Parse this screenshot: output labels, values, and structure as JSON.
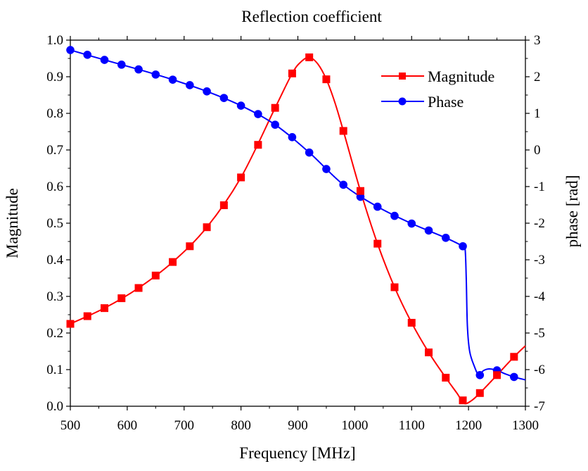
{
  "chart_data": {
    "type": "line",
    "title": "Reflection coefficient",
    "xlabel": "Frequency [MHz]",
    "ylabel": "Magnitude",
    "y2label": "phase [rad]",
    "xlim": [
      500,
      1300
    ],
    "ylim": [
      0.0,
      1.0
    ],
    "y2lim": [
      -7,
      3
    ],
    "x_ticks": [
      "500",
      "600",
      "700",
      "800",
      "900",
      "1000",
      "1100",
      "1200",
      "1300"
    ],
    "y_ticks": [
      "0.0",
      "0.1",
      "0.2",
      "0.3",
      "0.4",
      "0.5",
      "0.6",
      "0.7",
      "0.8",
      "0.9",
      "1.0"
    ],
    "y2_ticks": [
      "3",
      "2",
      "1",
      "0",
      "-1",
      "-2",
      "-3",
      "-4",
      "-5",
      "-6",
      "-7"
    ],
    "grid": false,
    "legend_position": "top-right",
    "series": [
      {
        "name": "Magnitude",
        "axis": "left",
        "color": "#ff0000",
        "marker": "square",
        "markers": [
          {
            "x": 500,
            "y": 0.225
          },
          {
            "x": 530,
            "y": 0.246
          },
          {
            "x": 560,
            "y": 0.268
          },
          {
            "x": 590,
            "y": 0.295
          },
          {
            "x": 620,
            "y": 0.323
          },
          {
            "x": 650,
            "y": 0.357
          },
          {
            "x": 680,
            "y": 0.394
          },
          {
            "x": 710,
            "y": 0.437
          },
          {
            "x": 740,
            "y": 0.489
          },
          {
            "x": 770,
            "y": 0.549
          },
          {
            "x": 800,
            "y": 0.625
          },
          {
            "x": 830,
            "y": 0.714
          },
          {
            "x": 860,
            "y": 0.815
          },
          {
            "x": 890,
            "y": 0.909
          },
          {
            "x": 920,
            "y": 0.953
          },
          {
            "x": 950,
            "y": 0.893
          },
          {
            "x": 980,
            "y": 0.752
          },
          {
            "x": 1010,
            "y": 0.588
          },
          {
            "x": 1040,
            "y": 0.444
          },
          {
            "x": 1070,
            "y": 0.325
          },
          {
            "x": 1100,
            "y": 0.228
          },
          {
            "x": 1130,
            "y": 0.147
          },
          {
            "x": 1160,
            "y": 0.078
          },
          {
            "x": 1190,
            "y": 0.016
          },
          {
            "x": 1220,
            "y": 0.036
          },
          {
            "x": 1250,
            "y": 0.085
          },
          {
            "x": 1280,
            "y": 0.135
          }
        ],
        "curve": [
          {
            "x": 500,
            "y": 0.225
          },
          {
            "x": 560,
            "y": 0.268
          },
          {
            "x": 620,
            "y": 0.323
          },
          {
            "x": 680,
            "y": 0.394
          },
          {
            "x": 740,
            "y": 0.489
          },
          {
            "x": 800,
            "y": 0.625
          },
          {
            "x": 860,
            "y": 0.815
          },
          {
            "x": 890,
            "y": 0.909
          },
          {
            "x": 905,
            "y": 0.94
          },
          {
            "x": 920,
            "y": 0.953
          },
          {
            "x": 935,
            "y": 0.935
          },
          {
            "x": 950,
            "y": 0.893
          },
          {
            "x": 965,
            "y": 0.83
          },
          {
            "x": 980,
            "y": 0.752
          },
          {
            "x": 1010,
            "y": 0.588
          },
          {
            "x": 1040,
            "y": 0.444
          },
          {
            "x": 1070,
            "y": 0.325
          },
          {
            "x": 1100,
            "y": 0.228
          },
          {
            "x": 1130,
            "y": 0.147
          },
          {
            "x": 1160,
            "y": 0.078
          },
          {
            "x": 1180,
            "y": 0.035
          },
          {
            "x": 1192,
            "y": 0.008
          },
          {
            "x": 1205,
            "y": 0.015
          },
          {
            "x": 1220,
            "y": 0.036
          },
          {
            "x": 1250,
            "y": 0.085
          },
          {
            "x": 1280,
            "y": 0.135
          },
          {
            "x": 1300,
            "y": 0.165
          }
        ]
      },
      {
        "name": "Phase",
        "axis": "right",
        "color": "#0000ff",
        "marker": "circle",
        "markers": [
          {
            "x": 500,
            "y": 2.73
          },
          {
            "x": 530,
            "y": 2.6
          },
          {
            "x": 560,
            "y": 2.46
          },
          {
            "x": 590,
            "y": 2.33
          },
          {
            "x": 620,
            "y": 2.2
          },
          {
            "x": 650,
            "y": 2.06
          },
          {
            "x": 680,
            "y": 1.92
          },
          {
            "x": 710,
            "y": 1.77
          },
          {
            "x": 740,
            "y": 1.6
          },
          {
            "x": 770,
            "y": 1.42
          },
          {
            "x": 800,
            "y": 1.21
          },
          {
            "x": 830,
            "y": 0.98
          },
          {
            "x": 860,
            "y": 0.69
          },
          {
            "x": 890,
            "y": 0.35
          },
          {
            "x": 920,
            "y": -0.07
          },
          {
            "x": 950,
            "y": -0.52
          },
          {
            "x": 980,
            "y": -0.95
          },
          {
            "x": 1010,
            "y": -1.28
          },
          {
            "x": 1040,
            "y": -1.55
          },
          {
            "x": 1070,
            "y": -1.8
          },
          {
            "x": 1100,
            "y": -2.01
          },
          {
            "x": 1130,
            "y": -2.2
          },
          {
            "x": 1160,
            "y": -2.4
          },
          {
            "x": 1190,
            "y": -2.63
          },
          {
            "x": 1220,
            "y": -6.15
          },
          {
            "x": 1250,
            "y": -6.02
          },
          {
            "x": 1280,
            "y": -6.2
          }
        ],
        "curve": [
          {
            "x": 500,
            "y": 2.73
          },
          {
            "x": 560,
            "y": 2.46
          },
          {
            "x": 620,
            "y": 2.2
          },
          {
            "x": 680,
            "y": 1.92
          },
          {
            "x": 740,
            "y": 1.6
          },
          {
            "x": 800,
            "y": 1.21
          },
          {
            "x": 860,
            "y": 0.69
          },
          {
            "x": 920,
            "y": -0.07
          },
          {
            "x": 980,
            "y": -0.95
          },
          {
            "x": 1040,
            "y": -1.55
          },
          {
            "x": 1100,
            "y": -2.01
          },
          {
            "x": 1160,
            "y": -2.4
          },
          {
            "x": 1190,
            "y": -2.63
          },
          {
            "x": 1194,
            "y": -2.7
          },
          {
            "x": 1196,
            "y": -3.5
          },
          {
            "x": 1198,
            "y": -4.8
          },
          {
            "x": 1202,
            "y": -5.5
          },
          {
            "x": 1210,
            "y": -5.9
          },
          {
            "x": 1218,
            "y": -6.15
          },
          {
            "x": 1226,
            "y": -6.03
          },
          {
            "x": 1236,
            "y": -5.98
          },
          {
            "x": 1250,
            "y": -6.02
          },
          {
            "x": 1265,
            "y": -6.12
          },
          {
            "x": 1280,
            "y": -6.2
          },
          {
            "x": 1300,
            "y": -6.28
          }
        ]
      }
    ]
  }
}
